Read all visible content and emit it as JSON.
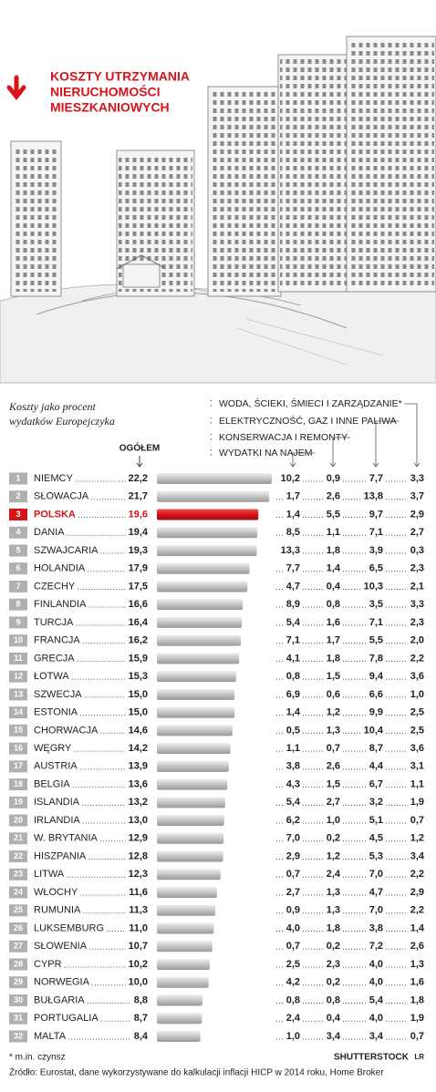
{
  "chart_data": {
    "type": "bar",
    "title": [
      "KOSZTY UTRZYMANIA",
      "NIERUCHOMOŚCI",
      "MIESZKANIOWYCH"
    ],
    "subtitle": [
      "Koszty jako procent",
      "wydatków Europejczyka"
    ],
    "ranks": [
      1,
      2,
      3,
      4,
      5,
      6,
      7,
      8,
      9,
      10,
      11,
      12,
      13,
      14,
      15,
      16,
      17,
      18,
      19,
      20,
      21,
      22,
      23,
      24,
      25,
      26,
      27,
      28,
      29,
      30,
      31,
      32
    ],
    "categories": [
      "NIEMCY",
      "SŁOWACJA",
      "POLSKA",
      "DANIA",
      "SZWAJCARIA",
      "HOLANDIA",
      "CZECHY",
      "FINLANDIA",
      "TURCJA",
      "FRANCJA",
      "GRECJA",
      "ŁOTWA",
      "SZWECJA",
      "ESTONIA",
      "CHORWACJA",
      "WĘGRY",
      "AUSTRIA",
      "BELGIA",
      "ISLANDIA",
      "IRLANDIA",
      "W. BRYTANIA",
      "HISZPANIA",
      "LITWA",
      "WŁOCHY",
      "RUMUNIA",
      "LUKSEMBURG",
      "SŁOWENIA",
      "CYPR",
      "NORWEGIA",
      "BUŁGARIA",
      "PORTUGALIA",
      "MALTA"
    ],
    "total": {
      "name": "OGÓŁEM",
      "values": [
        22.2,
        21.7,
        19.6,
        19.4,
        19.3,
        17.9,
        17.5,
        16.6,
        16.4,
        16.2,
        15.9,
        15.3,
        15.0,
        15.0,
        14.6,
        14.2,
        13.9,
        13.6,
        13.2,
        13.0,
        12.9,
        12.8,
        12.3,
        11.6,
        11.3,
        11.0,
        10.7,
        10.2,
        10.0,
        8.8,
        8.7,
        8.4
      ],
      "value_labels": [
        "22,2",
        "21,7",
        "19,6",
        "19,4",
        "19,3",
        "17,9",
        "17,5",
        "16,6",
        "16,4",
        "16,2",
        "15,9",
        "15,3",
        "15,0",
        "15,0",
        "14,6",
        "14,2",
        "13,9",
        "13,6",
        "13,2",
        "13,0",
        "12,9",
        "12,8",
        "12,3",
        "11,6",
        "11,3",
        "11,0",
        "10,7",
        "10,2",
        "10,0",
        "8,8",
        "8,7",
        "8,4"
      ]
    },
    "bar_colors": [
      "#c4c4c4",
      "#c4c4c4",
      "#d7141a",
      "#c4c4c4",
      "#c4c4c4",
      "#c4c4c4",
      "#c4c4c4",
      "#c4c4c4",
      "#c4c4c4",
      "#c4c4c4",
      "#c4c4c4",
      "#c4c4c4",
      "#c4c4c4",
      "#c4c4c4",
      "#c4c4c4",
      "#c4c4c4",
      "#c4c4c4",
      "#c4c4c4",
      "#c4c4c4",
      "#c4c4c4",
      "#c4c4c4",
      "#c4c4c4",
      "#c4c4c4",
      "#c4c4c4",
      "#c4c4c4",
      "#c4c4c4",
      "#c4c4c4",
      "#c4c4c4",
      "#c4c4c4",
      "#c4c4c4",
      "#c4c4c4",
      "#c4c4c4"
    ],
    "series": [
      {
        "name": "WYDATKI NA NAJEM",
        "values": [
          10.2,
          1.7,
          1.4,
          8.5,
          13.3,
          7.7,
          4.7,
          8.9,
          5.4,
          7.1,
          4.1,
          0.8,
          6.9,
          1.4,
          0.5,
          1.1,
          3.8,
          4.3,
          5.4,
          6.2,
          7.0,
          2.9,
          0.7,
          2.7,
          0.9,
          4.0,
          0.7,
          2.5,
          4.2,
          0.8,
          2.4,
          1.0
        ],
        "value_labels": [
          "10,2",
          "1,7",
          "1,4",
          "8,5",
          "13,3",
          "7,7",
          "4,7",
          "8,9",
          "5,4",
          "7,1",
          "4,1",
          "0,8",
          "6,9",
          "1,4",
          "0,5",
          "1,1",
          "3,8",
          "4,3",
          "5,4",
          "6,2",
          "7,0",
          "2,9",
          "0,7",
          "2,7",
          "0,9",
          "4,0",
          "0,7",
          "2,5",
          "4,2",
          "0,8",
          "2,4",
          "1,0"
        ]
      },
      {
        "name": "KONSERWACJA I REMONTY",
        "values": [
          0.9,
          2.6,
          5.5,
          1.1,
          1.8,
          1.4,
          0.4,
          0.8,
          1.6,
          1.7,
          1.8,
          1.5,
          0.6,
          1.2,
          1.3,
          0.7,
          2.6,
          1.5,
          2.7,
          1.0,
          0.2,
          1.2,
          2.4,
          1.3,
          1.3,
          1.8,
          0.2,
          2.3,
          0.2,
          0.8,
          0.4,
          3.4
        ],
        "value_labels": [
          "0,9",
          "2,6",
          "5,5",
          "1,1",
          "1,8",
          "1,4",
          "0,4",
          "0,8",
          "1,6",
          "1,7",
          "1,8",
          "1,5",
          "0,6",
          "1,2",
          "1,3",
          "0,7",
          "2,6",
          "1,5",
          "2,7",
          "1,0",
          "0,2",
          "1,2",
          "2,4",
          "1,3",
          "1,3",
          "1,8",
          "0,2",
          "2,3",
          "0,2",
          "0,8",
          "0,4",
          "3,4"
        ]
      },
      {
        "name": "ELEKTRYCZNOŚĆ, GAZ I INNE PALIWA",
        "values": [
          7.7,
          13.8,
          9.7,
          7.1,
          3.9,
          6.5,
          10.3,
          3.5,
          7.1,
          5.5,
          7.8,
          9.4,
          6.6,
          9.9,
          10.4,
          8.7,
          4.4,
          6.7,
          3.2,
          5.1,
          4.5,
          5.3,
          7.0,
          4.7,
          7.0,
          3.8,
          7.2,
          4.0,
          4.0,
          5.4,
          4.0,
          3.4
        ],
        "value_labels": [
          "7,7",
          "13,8",
          "9,7",
          "7,1",
          "3,9",
          "6,5",
          "10,3",
          "3,5",
          "7,1",
          "5,5",
          "7,8",
          "9,4",
          "6,6",
          "9,9",
          "10,4",
          "8,7",
          "4,4",
          "6,7",
          "3,2",
          "5,1",
          "4,5",
          "5,3",
          "7,0",
          "4,7",
          "7,0",
          "3,8",
          "7,2",
          "4,0",
          "4,0",
          "5,4",
          "4,0",
          "3,4"
        ]
      },
      {
        "name": "WODA, ŚCIEKI, ŚMIECI I ZARZĄDZANIE*",
        "values": [
          3.3,
          3.7,
          2.9,
          2.7,
          0.3,
          2.3,
          2.1,
          3.3,
          2.3,
          2.0,
          2.2,
          3.6,
          1.0,
          2.5,
          2.5,
          3.6,
          3.1,
          1.1,
          1.9,
          0.7,
          1.2,
          3.4,
          2.2,
          2.9,
          2.2,
          1.4,
          2.6,
          1.3,
          1.6,
          1.8,
          1.9,
          0.7
        ],
        "value_labels": [
          "3,3",
          "3,7",
          "2,9",
          "2,7",
          "0,3",
          "2,3",
          "2,1",
          "3,3",
          "2,3",
          "2,0",
          "2,2",
          "3,6",
          "1,0",
          "2,5",
          "2,5",
          "3,6",
          "3,1",
          "1,1",
          "1,9",
          "0,7",
          "1,2",
          "3,4",
          "2,2",
          "2,9",
          "2,2",
          "1,4",
          "2,6",
          "1,3",
          "1,6",
          "1,8",
          "1,9",
          "0,7"
        ]
      }
    ],
    "footnote": "* m.in. czynsz",
    "source": "Źródło: Eurostat, dane wykorzystywane do kalkulacji inflacji HICP w 2014 roku, Home Broker",
    "credit": "SHUTTERSTOCK",
    "author": "LR"
  }
}
